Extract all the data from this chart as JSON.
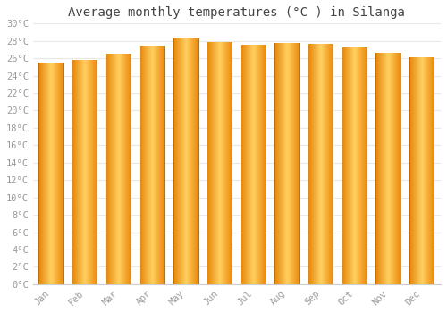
{
  "title": "Average monthly temperatures (°C ) in Silanga",
  "months": [
    "Jan",
    "Feb",
    "Mar",
    "Apr",
    "May",
    "Jun",
    "Jul",
    "Aug",
    "Sep",
    "Oct",
    "Nov",
    "Dec"
  ],
  "values": [
    25.5,
    25.8,
    26.5,
    27.5,
    28.3,
    27.9,
    27.6,
    27.8,
    27.7,
    27.2,
    26.6,
    26.1
  ],
  "bar_color_center": "#FFD060",
  "bar_color_edge": "#E8870A",
  "ylim": [
    0,
    30
  ],
  "yticks": [
    0,
    2,
    4,
    6,
    8,
    10,
    12,
    14,
    16,
    18,
    20,
    22,
    24,
    26,
    28,
    30
  ],
  "ytick_labels": [
    "0°C",
    "2°C",
    "4°C",
    "6°C",
    "8°C",
    "10°C",
    "12°C",
    "14°C",
    "16°C",
    "18°C",
    "20°C",
    "22°C",
    "24°C",
    "26°C",
    "28°C",
    "30°C"
  ],
  "background_color": "#ffffff",
  "plot_bg_color": "#ffffff",
  "grid_color": "#e8e8e8",
  "title_fontsize": 10,
  "tick_fontsize": 7.5,
  "tick_color": "#999999",
  "font_family": "monospace",
  "bar_width": 0.75
}
